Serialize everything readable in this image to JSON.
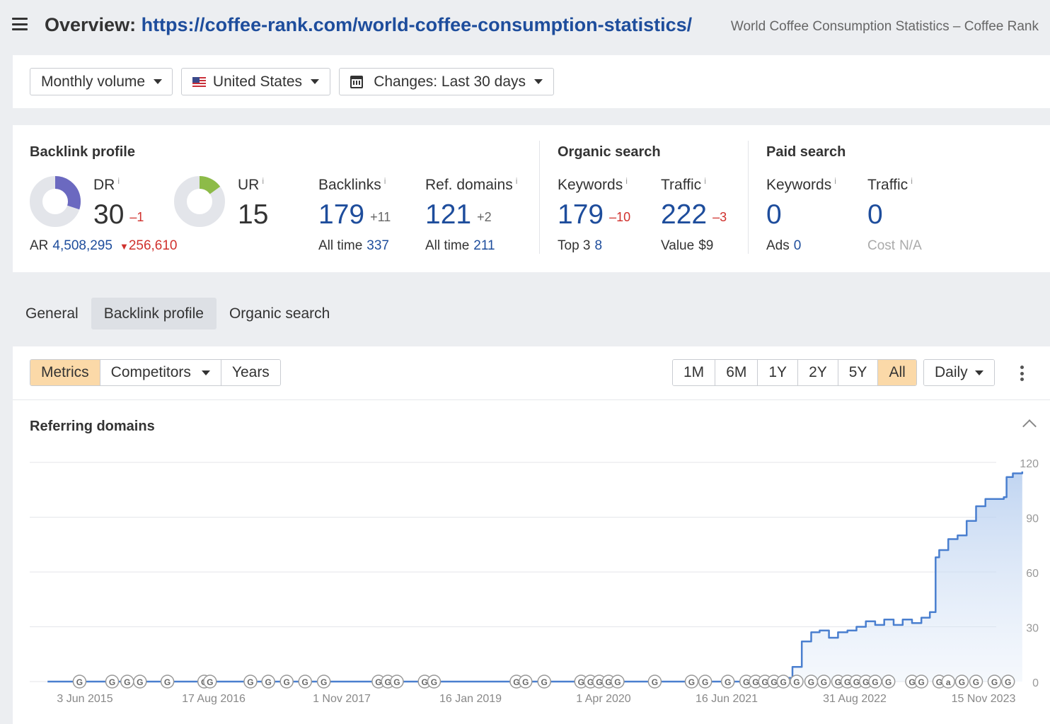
{
  "header": {
    "prefix": "Overview: ",
    "url": "https://coffee-rank.com/world-coffee-consumption-statistics/",
    "page_title": "World Coffee Consumption Statistics – Coffee Rank"
  },
  "filters": {
    "volume": "Monthly volume",
    "country": "United States",
    "changes": "Changes: Last 30 days"
  },
  "backlink_profile": {
    "title": "Backlink profile",
    "dr": {
      "label": "DR",
      "value": "30",
      "change": "–1",
      "fill": 0.3
    },
    "ur": {
      "label": "UR",
      "value": "15",
      "fill": 0.15
    },
    "ar": {
      "label": "AR",
      "value": "4,508,295",
      "change": "256,610"
    },
    "backlinks": {
      "label": "Backlinks",
      "value": "179",
      "change": "+11",
      "sub_label": "All time",
      "sub_value": "337"
    },
    "ref_domains": {
      "label": "Ref. domains",
      "value": "121",
      "change": "+2",
      "sub_label": "All time",
      "sub_value": "211"
    }
  },
  "organic_search": {
    "title": "Organic search",
    "keywords": {
      "label": "Keywords",
      "value": "179",
      "change": "–10",
      "sub_label": "Top 3",
      "sub_value": "8"
    },
    "traffic": {
      "label": "Traffic",
      "value": "222",
      "change": "–3",
      "sub_label": "Value",
      "sub_value": "$9"
    }
  },
  "paid_search": {
    "title": "Paid search",
    "keywords": {
      "label": "Keywords",
      "value": "0",
      "sub_label": "Ads",
      "sub_value": "0"
    },
    "traffic": {
      "label": "Traffic",
      "value": "0",
      "sub_label": "Cost",
      "sub_value": "N/A"
    }
  },
  "info_mark": "i",
  "tabs": [
    "General",
    "Backlink profile",
    "Organic search"
  ],
  "active_tab": "Backlink profile",
  "toolbar": {
    "metrics": "Metrics",
    "competitors": "Competitors",
    "years": "Years",
    "ranges": [
      "1M",
      "6M",
      "1Y",
      "2Y",
      "5Y",
      "All"
    ],
    "active_range": "All",
    "interval": "Daily"
  },
  "colors": {
    "accent_blue": "#1e4d9c",
    "negative": "#d0312d",
    "dr_donut": "#6b69c0",
    "ur_donut": "#8dbb48",
    "line": "#4a7fcf",
    "active_button": "#fbd9a8"
  },
  "chart_data": {
    "type": "area",
    "title": "Referring domains",
    "xlabel": "",
    "ylabel": "",
    "ylim": [
      0,
      120
    ],
    "yticks": [
      0,
      30,
      60,
      90,
      120
    ],
    "xlim": [
      "2015-01-01",
      "2024-02-01"
    ],
    "xticks": [
      "3 Jun 2015",
      "17 Aug 2016",
      "1 Nov 2017",
      "16 Jan 2019",
      "1 Apr 2020",
      "16 Jun 2021",
      "31 Aug 2022",
      "15 Nov 2023"
    ],
    "grid": true,
    "series": [
      {
        "points": [
          [
            "2015-03-01",
            0
          ],
          [
            "2021-10-01",
            0
          ],
          [
            "2021-11-01",
            2
          ],
          [
            "2021-12-01",
            8
          ],
          [
            "2022-01-01",
            22
          ],
          [
            "2022-02-01",
            27
          ],
          [
            "2022-03-01",
            28
          ],
          [
            "2022-04-01",
            24
          ],
          [
            "2022-05-01",
            27
          ],
          [
            "2022-06-01",
            28
          ],
          [
            "2022-07-01",
            30
          ],
          [
            "2022-08-01",
            33
          ],
          [
            "2022-09-01",
            31
          ],
          [
            "2022-10-01",
            34
          ],
          [
            "2022-11-01",
            31
          ],
          [
            "2022-12-01",
            34
          ],
          [
            "2023-01-01",
            32
          ],
          [
            "2023-02-01",
            35
          ],
          [
            "2023-03-01",
            38
          ],
          [
            "2023-03-20",
            68
          ],
          [
            "2023-04-01",
            72
          ],
          [
            "2023-05-01",
            78
          ],
          [
            "2023-06-01",
            80
          ],
          [
            "2023-07-01",
            88
          ],
          [
            "2023-08-01",
            96
          ],
          [
            "2023-09-01",
            100
          ],
          [
            "2023-10-01",
            100
          ],
          [
            "2023-11-01",
            101
          ],
          [
            "2023-11-10",
            112
          ],
          [
            "2023-12-01",
            114
          ],
          [
            "2024-01-01",
            115
          ]
        ]
      }
    ],
    "event_markers": [
      {
        "date": "2015-06-15",
        "label": "G"
      },
      {
        "date": "2015-10-01",
        "label": "G"
      },
      {
        "date": "2015-11-20",
        "label": "G"
      },
      {
        "date": "2016-01-01",
        "label": "G"
      },
      {
        "date": "2016-04-01",
        "label": "G"
      },
      {
        "date": "2016-08-01",
        "label": "G"
      },
      {
        "date": "2016-08-20",
        "label": "G"
      },
      {
        "date": "2017-01-01",
        "label": "G"
      },
      {
        "date": "2017-03-01",
        "label": "G"
      },
      {
        "date": "2017-05-01",
        "label": "G"
      },
      {
        "date": "2017-07-01",
        "label": "G"
      },
      {
        "date": "2017-09-01",
        "label": "G"
      },
      {
        "date": "2018-03-01",
        "label": "G"
      },
      {
        "date": "2018-04-01",
        "label": "G"
      },
      {
        "date": "2018-05-01",
        "label": "G"
      },
      {
        "date": "2018-08-01",
        "label": "G"
      },
      {
        "date": "2018-09-01",
        "label": "G"
      },
      {
        "date": "2019-06-01",
        "label": "G"
      },
      {
        "date": "2019-07-01",
        "label": "G"
      },
      {
        "date": "2019-09-01",
        "label": "G"
      },
      {
        "date": "2020-01-01",
        "label": "G"
      },
      {
        "date": "2020-02-01",
        "label": "G"
      },
      {
        "date": "2020-03-01",
        "label": "G"
      },
      {
        "date": "2020-04-01",
        "label": "G"
      },
      {
        "date": "2020-05-01",
        "label": "G"
      },
      {
        "date": "2020-09-01",
        "label": "G"
      },
      {
        "date": "2021-01-01",
        "label": "G"
      },
      {
        "date": "2021-02-15",
        "label": "G"
      },
      {
        "date": "2021-05-01",
        "label": "G"
      },
      {
        "date": "2021-07-01",
        "label": "G"
      },
      {
        "date": "2021-08-01",
        "label": "G"
      },
      {
        "date": "2021-09-01",
        "label": "G"
      },
      {
        "date": "2021-10-01",
        "label": "G"
      },
      {
        "date": "2021-11-01",
        "label": "G"
      },
      {
        "date": "2021-12-15",
        "label": "G"
      },
      {
        "date": "2022-02-01",
        "label": "G"
      },
      {
        "date": "2022-03-15",
        "label": "G"
      },
      {
        "date": "2022-05-01",
        "label": "G"
      },
      {
        "date": "2022-06-01",
        "label": "G"
      },
      {
        "date": "2022-07-01",
        "label": "G"
      },
      {
        "date": "2022-08-01",
        "label": "G"
      },
      {
        "date": "2022-09-01",
        "label": "G"
      },
      {
        "date": "2022-10-15",
        "label": "G"
      },
      {
        "date": "2023-01-01",
        "label": "G"
      },
      {
        "date": "2023-02-01",
        "label": "G"
      },
      {
        "date": "2023-04-01",
        "label": "G"
      },
      {
        "date": "2023-05-01",
        "label": "a"
      },
      {
        "date": "2023-06-15",
        "label": "G"
      },
      {
        "date": "2023-08-01",
        "label": "G"
      },
      {
        "date": "2023-10-01",
        "label": "G"
      },
      {
        "date": "2023-11-15",
        "label": "G"
      }
    ]
  }
}
